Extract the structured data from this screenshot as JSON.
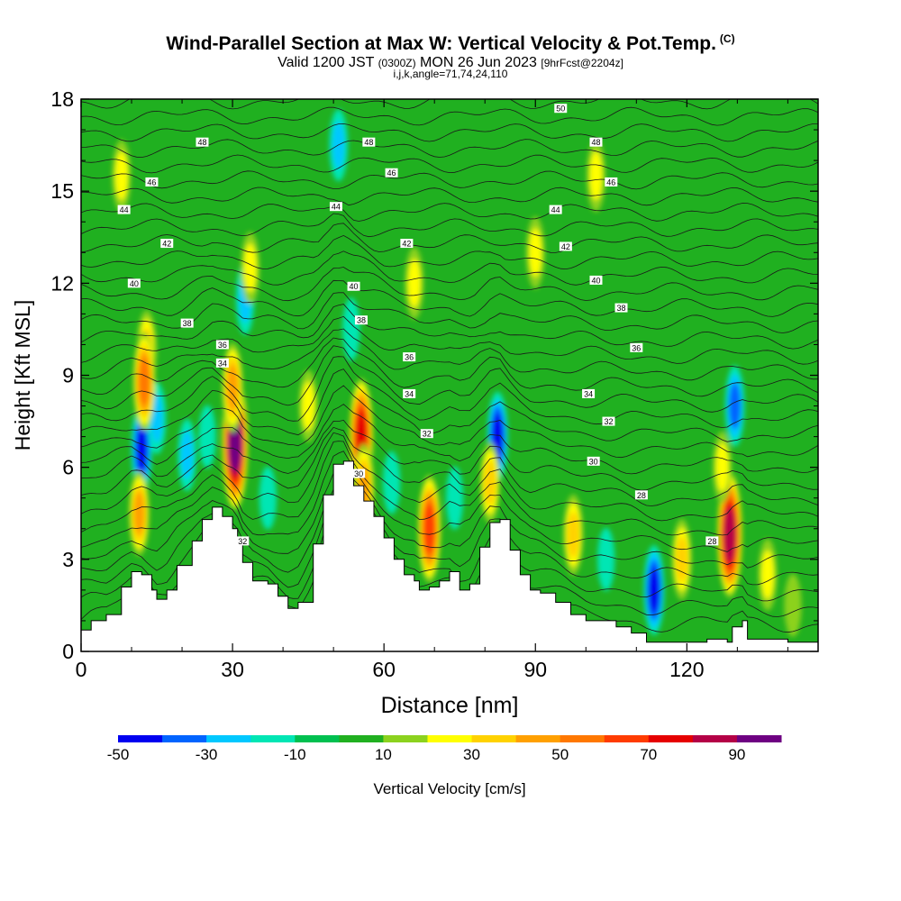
{
  "title": {
    "main": "Wind-Parallel Section at Max W: Vertical Velocity & Pot.Temp.",
    "copyright": "(C)",
    "valid_prefix": "Valid 1200 JST",
    "valid_utc": "(0300Z)",
    "valid_date": "MON 26 Jun 2023",
    "forecast": "[9hrFcst@2204z]",
    "indices": "i,j,k,angle=71,74,24,110"
  },
  "chart_data": {
    "type": "heatmap",
    "xlabel": "Distance [nm]",
    "ylabel": "Height [Kft MSL]",
    "xlim": [
      0,
      146
    ],
    "ylim": [
      0,
      18
    ],
    "xticks": [
      0,
      30,
      60,
      90,
      120
    ],
    "yticks": [
      0,
      3,
      6,
      9,
      12,
      15,
      18
    ],
    "colorbar": {
      "label": "Vertical Velocity [cm/s]",
      "tick_labels": [
        "-50",
        "-30",
        "-10",
        "10",
        "30",
        "50",
        "70",
        "90"
      ],
      "levels": [
        -50,
        -40,
        -30,
        -20,
        -10,
        0,
        10,
        20,
        30,
        40,
        50,
        60,
        70,
        80,
        90,
        100
      ],
      "colors": [
        "#0000f0",
        "#0064ff",
        "#00c8ff",
        "#00e6b4",
        "#00c050",
        "#20b020",
        "#8cd21e",
        "#ffff00",
        "#ffd200",
        "#ffa000",
        "#ff7800",
        "#ff3c00",
        "#e60000",
        "#b40046",
        "#6e0082"
      ]
    },
    "background_category_value": 5,
    "terrain_height_kft": [
      [
        0,
        0.7
      ],
      [
        2,
        1
      ],
      [
        5,
        1.2
      ],
      [
        8,
        2.1
      ],
      [
        10,
        2.6
      ],
      [
        12,
        2.5
      ],
      [
        14,
        2.0
      ],
      [
        15,
        1.7
      ],
      [
        17,
        2.0
      ],
      [
        19,
        2.8
      ],
      [
        22,
        3.6
      ],
      [
        24,
        4.3
      ],
      [
        26,
        4.7
      ],
      [
        28,
        4.4
      ],
      [
        30,
        4.0
      ],
      [
        31,
        3.6
      ],
      [
        32,
        2.9
      ],
      [
        34,
        2.3
      ],
      [
        37,
        2.2
      ],
      [
        39,
        1.8
      ],
      [
        41,
        1.4
      ],
      [
        43,
        1.6
      ],
      [
        46,
        3.5
      ],
      [
        48,
        5.1
      ],
      [
        50,
        6.1
      ],
      [
        52,
        6.2
      ],
      [
        54,
        5.4
      ],
      [
        56,
        4.9
      ],
      [
        58,
        4.4
      ],
      [
        60,
        3.7
      ],
      [
        62,
        3.0
      ],
      [
        64,
        2.5
      ],
      [
        66,
        2.3
      ],
      [
        67,
        2.0
      ],
      [
        69,
        2.1
      ],
      [
        71,
        2.3
      ],
      [
        73,
        2.6
      ],
      [
        75,
        2.0
      ],
      [
        77,
        2.2
      ],
      [
        79,
        3.4
      ],
      [
        81,
        4.2
      ],
      [
        83,
        4.3
      ],
      [
        85,
        3.3
      ],
      [
        87,
        2.5
      ],
      [
        89,
        2.0
      ],
      [
        91,
        1.9
      ],
      [
        94,
        1.6
      ],
      [
        97,
        1.2
      ],
      [
        100,
        1.0
      ],
      [
        103,
        1.0
      ],
      [
        106,
        0.8
      ],
      [
        109,
        0.6
      ],
      [
        112,
        0.3
      ],
      [
        116,
        0.3
      ],
      [
        120,
        0.3
      ],
      [
        124,
        0.4
      ],
      [
        128,
        0.3
      ],
      [
        129,
        0.8
      ],
      [
        131,
        1.0
      ],
      [
        132,
        0.4
      ],
      [
        140,
        0.3
      ],
      [
        146,
        0.3
      ]
    ],
    "cells": [
      {
        "x": 12,
        "y": 6.6,
        "value": -40
      },
      {
        "x": 15,
        "y": 7.6,
        "value": -20
      },
      {
        "x": 11.5,
        "y": 4.5,
        "value": 35
      },
      {
        "x": 13,
        "y": 9.8,
        "value": 30
      },
      {
        "x": 12.5,
        "y": 8.8,
        "value": 50
      },
      {
        "x": 21,
        "y": 6.4,
        "value": -20
      },
      {
        "x": 25,
        "y": 7.0,
        "value": -10
      },
      {
        "x": 30.5,
        "y": 6.8,
        "value": 90
      },
      {
        "x": 30,
        "y": 8.6,
        "value": 40
      },
      {
        "x": 32.5,
        "y": 11.5,
        "value": -20
      },
      {
        "x": 33.5,
        "y": 12.5,
        "value": 20
      },
      {
        "x": 37,
        "y": 5.0,
        "value": -10
      },
      {
        "x": 45,
        "y": 8.0,
        "value": 20
      },
      {
        "x": 51,
        "y": 16.5,
        "value": -20
      },
      {
        "x": 53.5,
        "y": 10.5,
        "value": -10
      },
      {
        "x": 55.5,
        "y": 7.0,
        "value": 70
      },
      {
        "x": 56,
        "y": 5.3,
        "value": 40
      },
      {
        "x": 61.5,
        "y": 5.5,
        "value": -10
      },
      {
        "x": 69,
        "y": 4.0,
        "value": 60
      },
      {
        "x": 74,
        "y": 5.0,
        "value": -10
      },
      {
        "x": 82.5,
        "y": 7.0,
        "value": -40
      },
      {
        "x": 81,
        "y": 5.5,
        "value": 30
      },
      {
        "x": 97.5,
        "y": 3.8,
        "value": 30
      },
      {
        "x": 104,
        "y": 3.0,
        "value": -10
      },
      {
        "x": 113.5,
        "y": 2.0,
        "value": -40
      },
      {
        "x": 119,
        "y": 3.0,
        "value": 30
      },
      {
        "x": 128.5,
        "y": 3.8,
        "value": 80
      },
      {
        "x": 129.5,
        "y": 8.0,
        "value": -30
      },
      {
        "x": 127,
        "y": 6.0,
        "value": 20
      },
      {
        "x": 136,
        "y": 2.5,
        "value": 20
      },
      {
        "x": 141,
        "y": 1.5,
        "value": 10
      },
      {
        "x": 90,
        "y": 13.0,
        "value": 20
      },
      {
        "x": 102,
        "y": 15.5,
        "value": 20
      },
      {
        "x": 66,
        "y": 12.0,
        "value": 20
      },
      {
        "x": 8,
        "y": 15.5,
        "value": 20
      }
    ],
    "isentrope_labels": [
      {
        "text": "50",
        "x": 95,
        "y": 17.7
      },
      {
        "text": "48",
        "x": 24,
        "y": 16.6
      },
      {
        "text": "48",
        "x": 57,
        "y": 16.6
      },
      {
        "text": "48",
        "x": 102,
        "y": 16.6
      },
      {
        "text": "46",
        "x": 14,
        "y": 15.3
      },
      {
        "text": "46",
        "x": 61.5,
        "y": 15.6
      },
      {
        "text": "46",
        "x": 105,
        "y": 15.3
      },
      {
        "text": "44",
        "x": 8.5,
        "y": 14.4
      },
      {
        "text": "44",
        "x": 50.5,
        "y": 14.5
      },
      {
        "text": "44",
        "x": 94,
        "y": 14.4
      },
      {
        "text": "42",
        "x": 17,
        "y": 13.3
      },
      {
        "text": "42",
        "x": 64.5,
        "y": 13.3
      },
      {
        "text": "42",
        "x": 96,
        "y": 13.2
      },
      {
        "text": "40",
        "x": 10.5,
        "y": 12.0
      },
      {
        "text": "40",
        "x": 54,
        "y": 11.9
      },
      {
        "text": "40",
        "x": 102,
        "y": 12.1
      },
      {
        "text": "38",
        "x": 21,
        "y": 10.7
      },
      {
        "text": "38",
        "x": 55.5,
        "y": 10.8
      },
      {
        "text": "38",
        "x": 107,
        "y": 11.2
      },
      {
        "text": "36",
        "x": 28,
        "y": 10.0
      },
      {
        "text": "36",
        "x": 65,
        "y": 9.6
      },
      {
        "text": "36",
        "x": 110,
        "y": 9.9
      },
      {
        "text": "34",
        "x": 28,
        "y": 9.4
      },
      {
        "text": "34",
        "x": 65,
        "y": 8.4
      },
      {
        "text": "34",
        "x": 100.5,
        "y": 8.4
      },
      {
        "text": "32",
        "x": 68.5,
        "y": 7.1
      },
      {
        "text": "32",
        "x": 104.5,
        "y": 7.5
      },
      {
        "text": "32",
        "x": 32,
        "y": 3.6
      },
      {
        "text": "30",
        "x": 55,
        "y": 5.8
      },
      {
        "text": "30",
        "x": 101.5,
        "y": 6.2
      },
      {
        "text": "28",
        "x": 111,
        "y": 5.1
      },
      {
        "text": "28",
        "x": 125,
        "y": 3.6
      }
    ]
  }
}
